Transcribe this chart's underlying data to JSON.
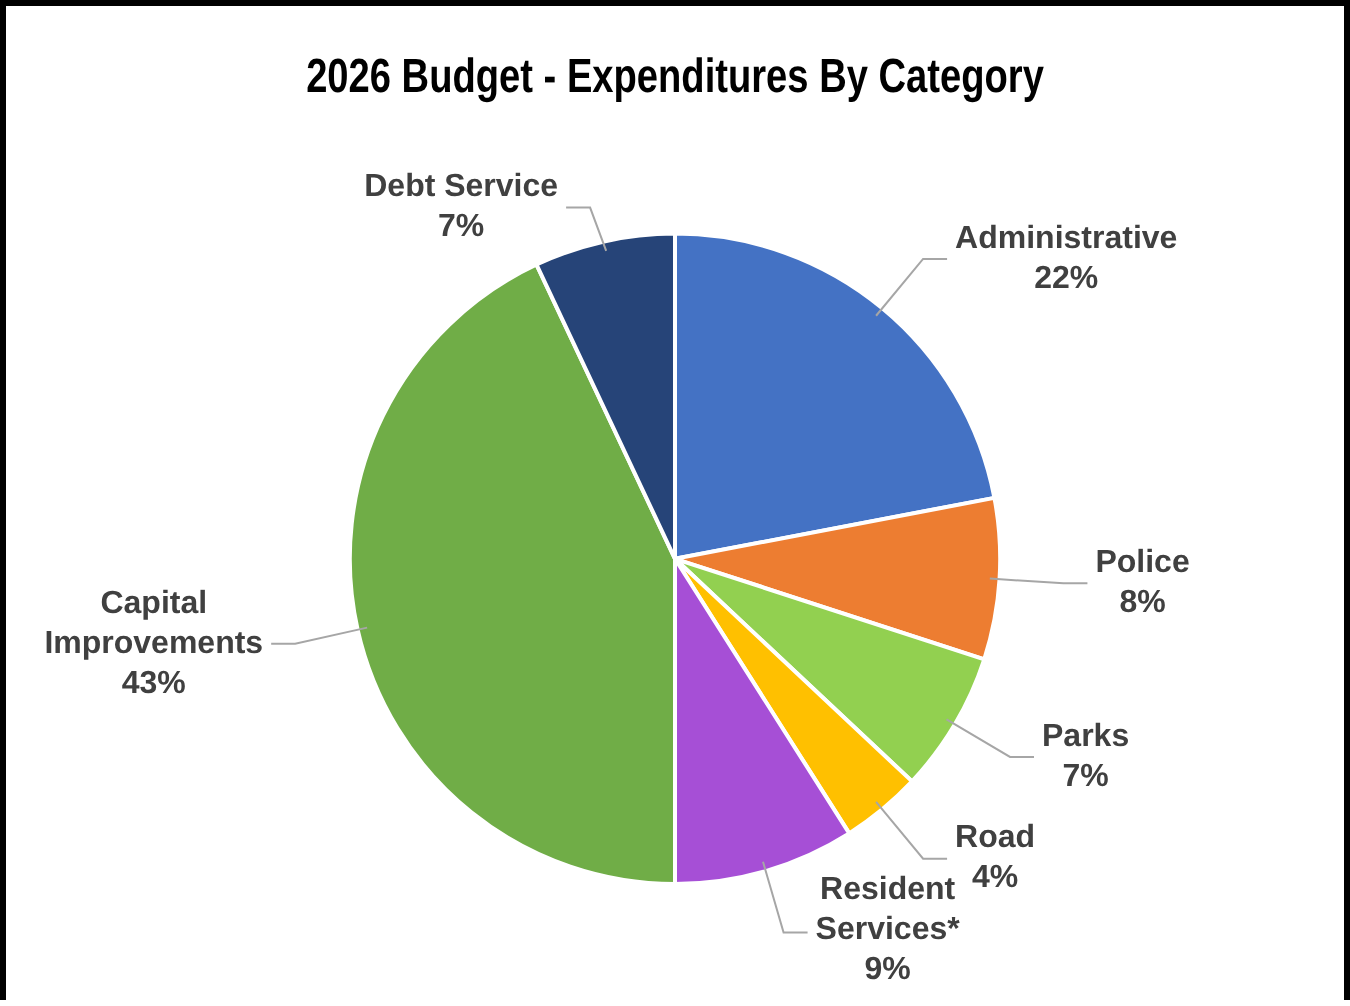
{
  "chart_data": {
    "type": "pie",
    "title": "2026 Budget - Expenditures By Category",
    "categories": [
      "Administrative",
      "Police",
      "Parks",
      "Road",
      "Resident Services*",
      "Capital Improvements",
      "Debt Service"
    ],
    "values": [
      22,
      8,
      7,
      4,
      9,
      43,
      7
    ],
    "value_labels": [
      "22%",
      "8%",
      "7%",
      "4%",
      "9%",
      "43%",
      "7%"
    ],
    "colors": [
      "#4472c4",
      "#ed7d31",
      "#92d050",
      "#ffc000",
      "#a64fd6",
      "#70ad47",
      "#264478"
    ],
    "legend": false
  }
}
